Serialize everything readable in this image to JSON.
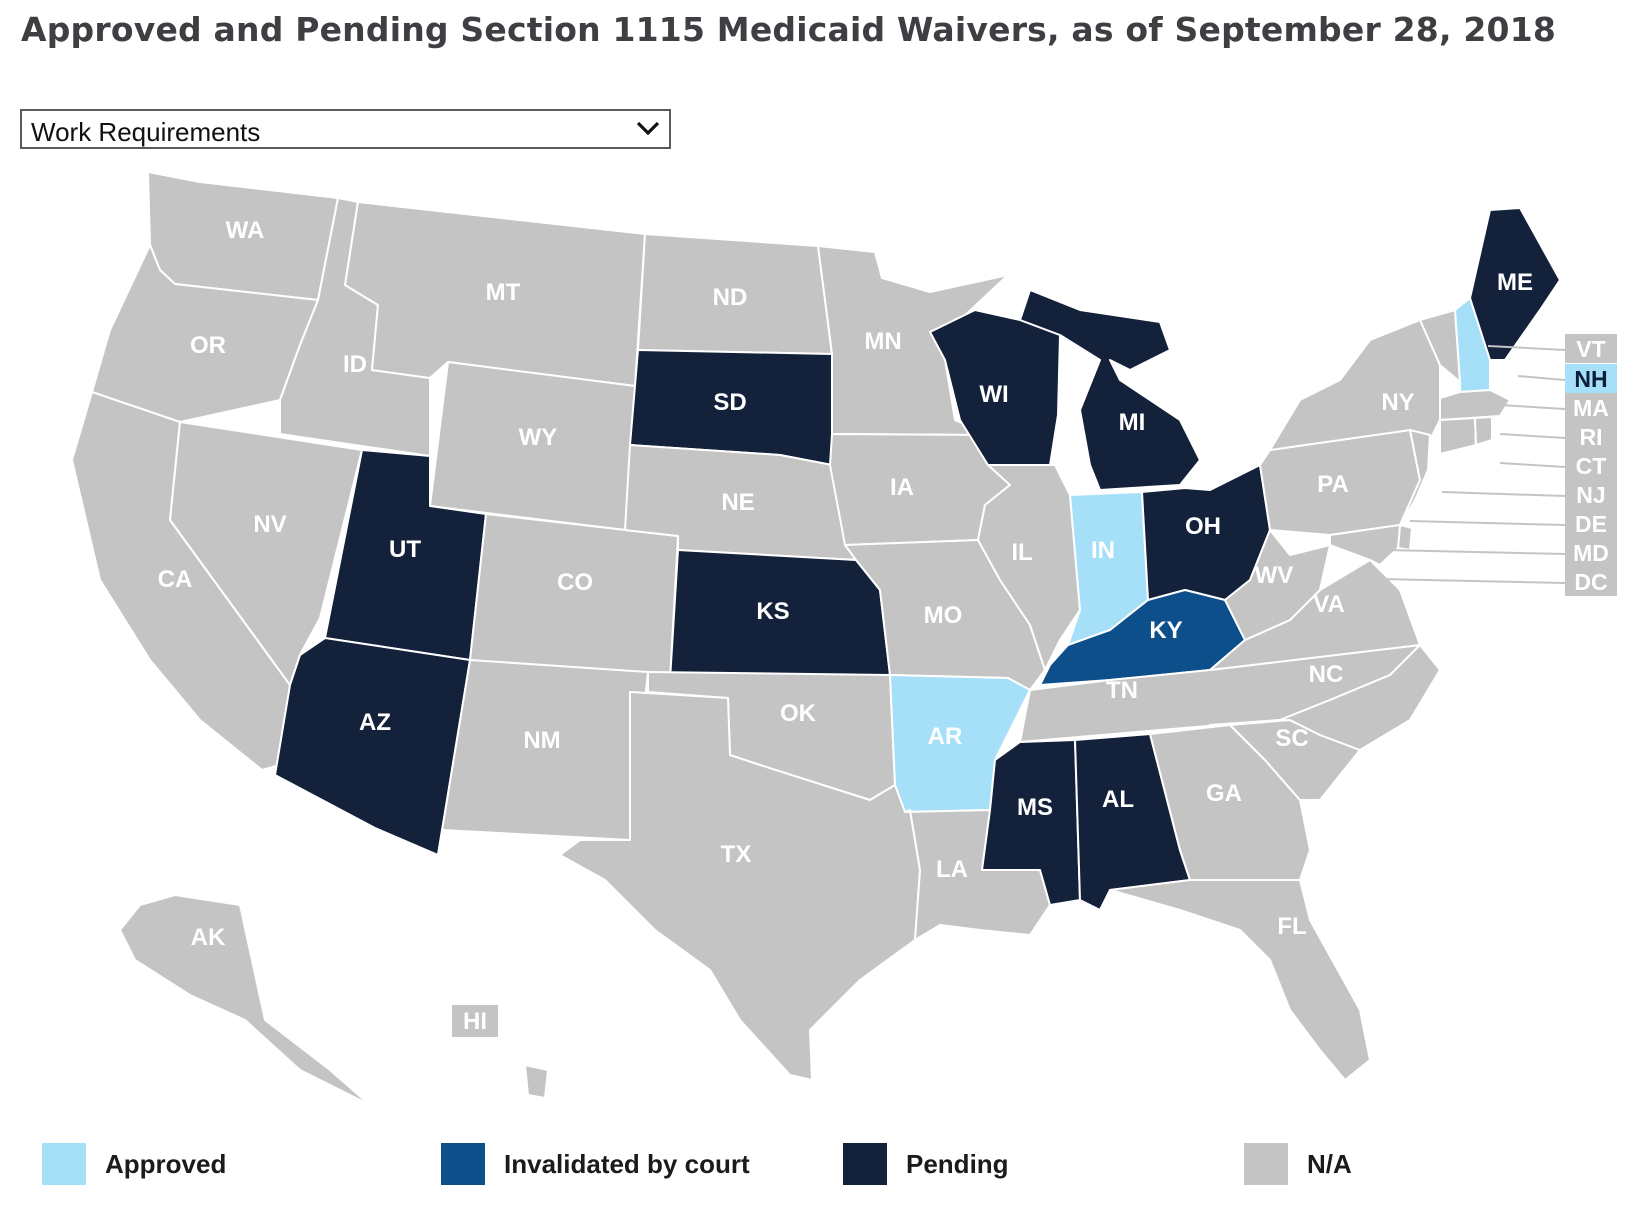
{
  "title": "Approved and Pending Section 1115 Medicaid Waivers, as of September 28, 2018",
  "dropdown": {
    "selected": "Work Requirements"
  },
  "colors": {
    "approved": "#a6dff8",
    "invalidated": "#0d4f8b",
    "pending": "#14213a",
    "na": "#c4c4c4",
    "border": "#ffffff"
  },
  "legend": [
    {
      "key": "approved",
      "label": "Approved"
    },
    {
      "key": "invalidated",
      "label": "Invalidated by court"
    },
    {
      "key": "pending",
      "label": "Pending"
    },
    {
      "key": "na",
      "label": "N/A"
    }
  ],
  "states": {
    "WA": "na",
    "OR": "na",
    "CA": "na",
    "ID": "na",
    "NV": "na",
    "MT": "na",
    "WY": "na",
    "UT": "pending",
    "AZ": "pending",
    "CO": "na",
    "NM": "na",
    "ND": "na",
    "SD": "pending",
    "NE": "na",
    "KS": "pending",
    "OK": "na",
    "TX": "na",
    "MN": "na",
    "IA": "na",
    "MO": "na",
    "AR": "approved",
    "LA": "na",
    "WI": "pending",
    "IL": "na",
    "MI": "pending",
    "IN": "approved",
    "OH": "pending",
    "KY": "invalidated",
    "TN": "na",
    "MS": "pending",
    "AL": "pending",
    "GA": "na",
    "FL": "na",
    "SC": "na",
    "NC": "na",
    "VA": "na",
    "WV": "na",
    "PA": "na",
    "NY": "na",
    "ME": "pending",
    "AK": "na",
    "HI": "na",
    "VT": "na",
    "NH": "approved",
    "MA": "na",
    "RI": "na",
    "CT": "na",
    "NJ": "na",
    "DE": "na",
    "MD": "na",
    "DC": "na"
  },
  "small_state_tags": [
    "VT",
    "NH",
    "MA",
    "RI",
    "CT",
    "NJ",
    "DE",
    "MD",
    "DC"
  ]
}
